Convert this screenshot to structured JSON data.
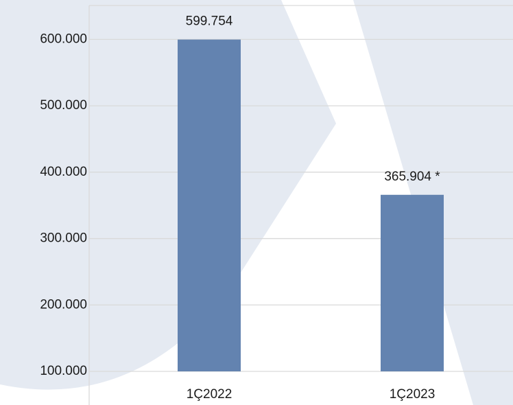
{
  "chart_data": {
    "type": "bar",
    "categories": [
      "1Ç2022",
      "1Ç2023"
    ],
    "values": [
      599754,
      365904
    ],
    "value_labels": [
      "599.754",
      "365.904 *"
    ],
    "color": "#6383b0",
    "ylim": [
      100000,
      650000
    ],
    "yticks": [
      {
        "value": 100000,
        "label": "100.000"
      },
      {
        "value": 200000,
        "label": "200.000"
      },
      {
        "value": 300000,
        "label": "300.000"
      },
      {
        "value": 400000,
        "label": "400.000"
      },
      {
        "value": 500000,
        "label": "500.000"
      },
      {
        "value": 600000,
        "label": "600.000"
      }
    ],
    "grid": true
  }
}
